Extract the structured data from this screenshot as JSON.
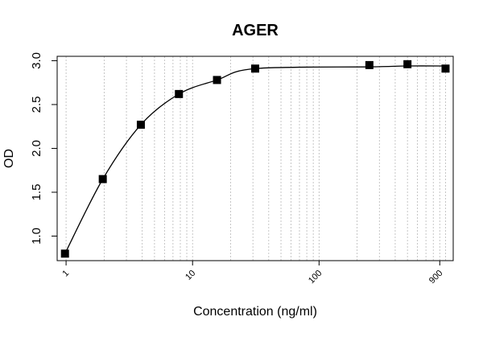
{
  "chart_data": {
    "type": "scatter",
    "title": "AGER",
    "xlabel": "Concentration (ng/ml)",
    "ylabel": "OD",
    "x_scale": "log",
    "xlim": [
      0.85,
      1150
    ],
    "ylim": [
      0.72,
      3.05
    ],
    "x_ticks": [
      1,
      10,
      100,
      900
    ],
    "x_tick_labels": [
      "1",
      "10",
      "100",
      "900"
    ],
    "y_ticks": [
      1.0,
      1.5,
      2.0,
      2.5,
      3.0
    ],
    "y_tick_labels": [
      "1.0",
      "1.5",
      "2.0",
      "2.5",
      "3.0"
    ],
    "grid": "vertical dotted (log minor)",
    "marker": "square",
    "marker_color": "#000000",
    "fit_curve": "4PL",
    "series": [
      {
        "x": [
          0.98,
          1.95,
          3.9,
          7.8,
          15.6,
          31.25,
          250,
          500,
          1000
        ],
        "y": [
          0.8,
          1.65,
          2.27,
          2.62,
          2.78,
          2.91,
          2.95,
          2.96,
          2.91
        ]
      }
    ]
  }
}
